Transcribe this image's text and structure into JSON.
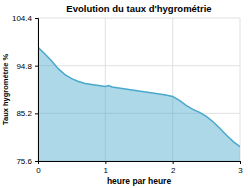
{
  "chart_data": {
    "type": "area",
    "title": "Evolution du taux d'hygrométrie",
    "x_label": "heure par heure",
    "y_label": "Taux hygrométrie %",
    "color": "#4aa8cc",
    "grid": true,
    "xlim": [
      0,
      3
    ],
    "ylim": [
      75.6,
      104.4
    ],
    "xticks": [
      0,
      1,
      2,
      3
    ],
    "yticks": [
      75.6,
      85.2,
      94.8,
      104.4
    ],
    "x": [
      0.0,
      0.1,
      0.2,
      0.3,
      0.4,
      0.5,
      0.6,
      0.7,
      0.8,
      0.9,
      1.0,
      1.05,
      1.1,
      1.2,
      1.3,
      1.4,
      1.5,
      1.6,
      1.7,
      1.8,
      1.9,
      2.0,
      2.1,
      2.2,
      2.3,
      2.4,
      2.5,
      2.6,
      2.7,
      2.8,
      2.9,
      3.0
    ],
    "values": [
      98.5,
      97.2,
      95.8,
      94.2,
      93.0,
      92.2,
      91.6,
      91.2,
      91.0,
      90.8,
      90.6,
      90.8,
      90.5,
      90.3,
      90.1,
      89.9,
      89.7,
      89.5,
      89.3,
      89.1,
      88.9,
      88.6,
      87.8,
      86.8,
      86.0,
      85.4,
      84.6,
      83.5,
      82.2,
      80.8,
      79.5,
      78.5
    ]
  }
}
